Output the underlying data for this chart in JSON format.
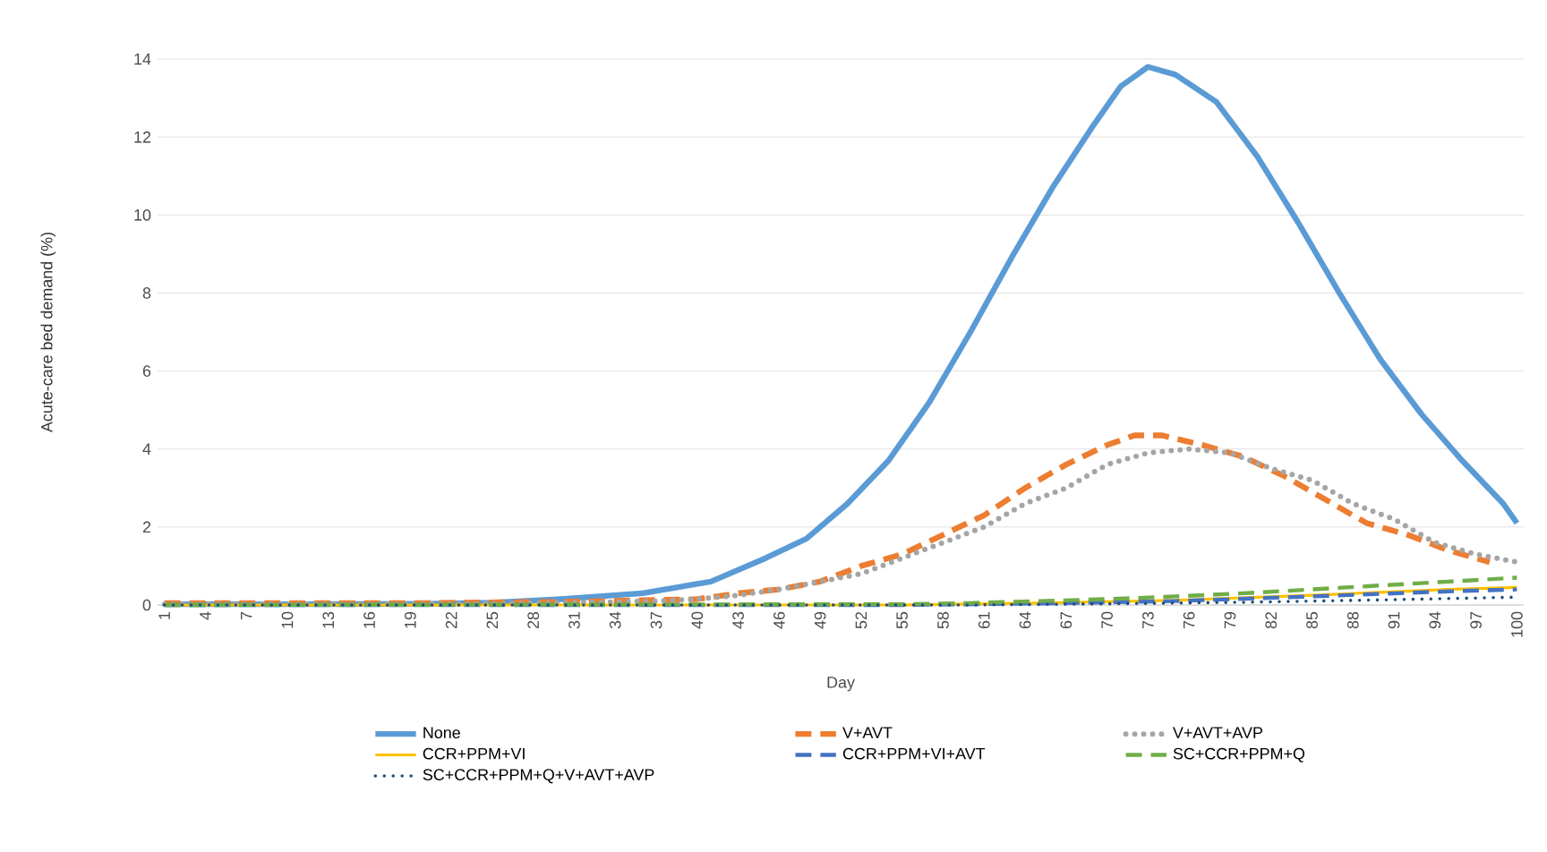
{
  "chart_data": {
    "type": "line",
    "xlabel": "Day",
    "ylabel": "Acute-care bed demand (%)",
    "xlim": [
      0.5,
      100.5
    ],
    "xticks": [
      1,
      4,
      7,
      10,
      13,
      16,
      19,
      22,
      25,
      28,
      31,
      34,
      37,
      40,
      43,
      46,
      49,
      52,
      55,
      58,
      61,
      64,
      67,
      70,
      73,
      76,
      79,
      82,
      85,
      88,
      91,
      94,
      97,
      100
    ],
    "ylim": [
      0,
      14
    ],
    "yticks": [
      0,
      2,
      4,
      6,
      8,
      10,
      12,
      14
    ],
    "grid": "y",
    "legend": "bottom",
    "marker": "none",
    "series": [
      {
        "name": "None",
        "color": "#5b9bd5",
        "line_style": "solid",
        "x": [
          1,
          10,
          20,
          25,
          30,
          36,
          41,
          45,
          48,
          51,
          54,
          57,
          60,
          63,
          66,
          69,
          71,
          73,
          75,
          78,
          81,
          84,
          87,
          90,
          93,
          96,
          99,
          100
        ],
        "values": [
          0.02,
          0.02,
          0.03,
          0.06,
          0.15,
          0.3,
          0.6,
          1.2,
          1.7,
          2.6,
          3.7,
          5.2,
          7.0,
          8.9,
          10.7,
          12.3,
          13.3,
          13.8,
          13.6,
          12.9,
          11.5,
          9.8,
          8.0,
          6.3,
          4.9,
          3.7,
          2.6,
          2.1
        ]
      },
      {
        "name": "V+AVT",
        "color": "#ed7d31",
        "line_style": "dashed",
        "x": [
          1,
          20,
          30,
          36,
          40,
          43,
          46,
          49,
          52,
          55,
          58,
          61,
          64,
          67,
          70,
          72,
          74,
          77,
          80,
          83,
          86,
          89,
          92,
          95,
          98
        ],
        "values": [
          0.05,
          0.05,
          0.08,
          0.12,
          0.15,
          0.3,
          0.4,
          0.6,
          1.0,
          1.3,
          1.8,
          2.3,
          3.0,
          3.6,
          4.1,
          4.35,
          4.35,
          4.1,
          3.8,
          3.3,
          2.7,
          2.1,
          1.8,
          1.4,
          1.1
        ]
      },
      {
        "name": "V+AVT+AVP",
        "color": "#a5a5a5",
        "line_style": "dotted",
        "x": [
          1,
          20,
          30,
          37,
          40,
          43,
          46,
          49,
          52,
          55,
          58,
          61,
          64,
          67,
          70,
          73,
          76,
          79,
          82,
          85,
          88,
          91,
          94,
          97,
          100
        ],
        "values": [
          0.02,
          0.02,
          0.05,
          0.1,
          0.15,
          0.25,
          0.4,
          0.6,
          0.8,
          1.2,
          1.6,
          2.0,
          2.6,
          3.0,
          3.6,
          3.9,
          4.0,
          3.9,
          3.5,
          3.2,
          2.6,
          2.2,
          1.6,
          1.3,
          1.1
        ]
      },
      {
        "name": "CCR+PPM+VI",
        "color": "#ffc000",
        "line_style": "solid",
        "x": [
          1,
          55,
          65,
          75,
          85,
          95,
          100
        ],
        "values": [
          0.0,
          0.0,
          0.05,
          0.12,
          0.25,
          0.4,
          0.45
        ]
      },
      {
        "name": "CCR+PPM+VI+AVT",
        "color": "#4472c4",
        "line_style": "dashed",
        "x": [
          1,
          55,
          65,
          75,
          85,
          95,
          100
        ],
        "values": [
          0.0,
          0.0,
          0.04,
          0.1,
          0.22,
          0.35,
          0.4
        ]
      },
      {
        "name": "SC+CCR+PPM+Q",
        "color": "#70ad47",
        "line_style": "dashed",
        "x": [
          1,
          55,
          60,
          65,
          70,
          75,
          80,
          85,
          90,
          95,
          100
        ],
        "values": [
          0.0,
          0.02,
          0.05,
          0.1,
          0.15,
          0.22,
          0.3,
          0.4,
          0.5,
          0.6,
          0.7
        ]
      },
      {
        "name": "SC+CCR+PPM+Q+V+AVT+AVP",
        "color": "#1f4e79",
        "line_style": "dotted",
        "x": [
          1,
          60,
          70,
          80,
          90,
          100
        ],
        "values": [
          0.0,
          0.0,
          0.03,
          0.07,
          0.13,
          0.2
        ]
      }
    ]
  }
}
